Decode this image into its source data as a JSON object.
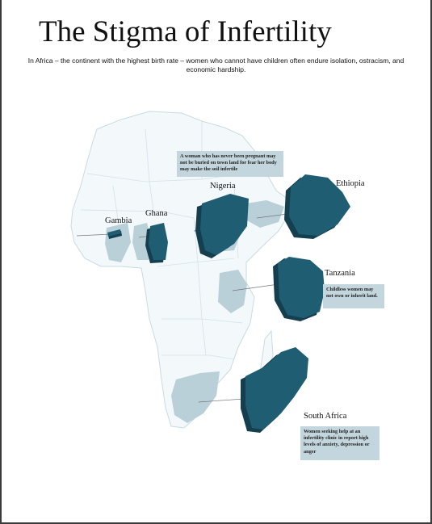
{
  "title": "The Stigma of Infertility",
  "subtitle": "In Africa – the continent with the highest birth rate – women who cannot have children often endure isolation, ostracism, and economic hardship.",
  "countries": {
    "gambia": "Gambia",
    "ghana": "Ghana",
    "nigeria": "Nigeria",
    "ethiopia": "Ethiopia",
    "tanzania": "Tanzania",
    "south_africa": "South Africa"
  },
  "notes": {
    "nigeria": "A woman who has never been pregnant may not be buried on town land for fear her body may make the soil infertile",
    "tanzania": "Childless women may not own or inherit land.",
    "south_africa": "Women seeking help at an infertility clinic in report high levels of anxiety, depression or anger"
  },
  "colors": {
    "highlight": "#1f5d72",
    "highlight_dark": "#153f4e",
    "region": "#b9d0d8",
    "land": "#f3f8fa",
    "border": "#c9dbe2"
  }
}
